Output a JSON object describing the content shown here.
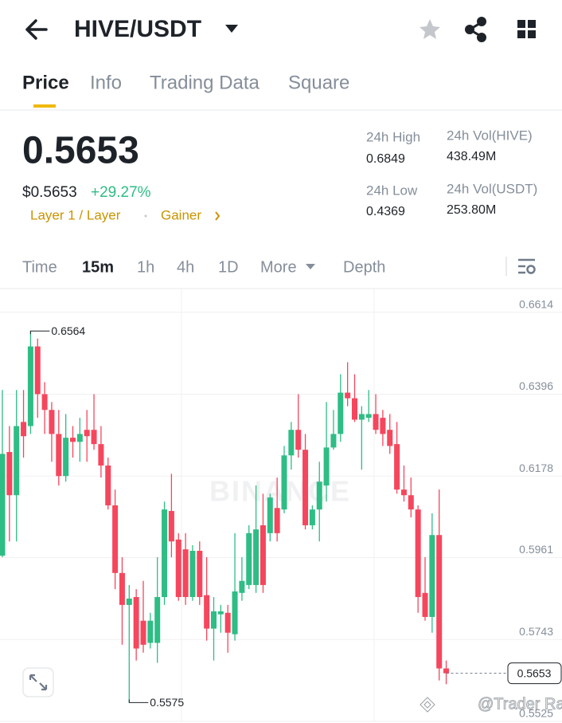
{
  "header": {
    "title": "HIVE/USDT"
  },
  "tabs": [
    "Price",
    "Info",
    "Trading Data",
    "Square"
  ],
  "price": {
    "last": "0.5653",
    "fiat": "$0.5653",
    "change": "+29.27%",
    "tags": [
      "Layer 1 / Layer",
      "Gainer"
    ]
  },
  "stats": [
    {
      "label": "24h High",
      "value": "0.6849"
    },
    {
      "label": "24h Vol(HIVE)",
      "value": "438.49M"
    },
    {
      "label": "24h Low",
      "value": "0.4369"
    },
    {
      "label": "24h Vol(USDT)",
      "value": "253.80M"
    }
  ],
  "intervals": [
    "Time",
    "15m",
    "1h",
    "4h",
    "1D",
    "More",
    "Depth"
  ],
  "chart_data": {
    "type": "candlestick",
    "open": [
      0.5966,
      0.6242,
      0.6127,
      0.6322,
      0.6311,
      0.6523,
      0.6396,
      0.6354,
      0.629,
      0.6178,
      0.628,
      0.6269,
      0.6301,
      0.6301,
      0.6263,
      0.6206,
      0.61,
      0.592,
      0.5835,
      0.5856,
      0.5793,
      0.5734,
      0.5734,
      0.5856,
      0.6085,
      0.6009,
      0.5983,
      0.5856,
      0.5979,
      0.5861,
      0.5772,
      0.581,
      0.5814,
      0.5757,
      0.5867,
      0.5888,
      0.5888,
      0.6047,
      0.6026,
      0.6093,
      0.6089,
      0.6233,
      0.6301,
      0.6248,
      0.6047,
      0.6089,
      0.6153,
      0.6254,
      0.629,
      0.64,
      0.6385,
      0.6328,
      0.6333,
      0.6343,
      0.6333,
      0.6301,
      0.6263,
      0.6142,
      0.6127,
      0.6089,
      0.5867,
      0.5803,
      0.6021,
      0.5666
    ],
    "high": [
      0.6407,
      0.6311,
      0.6407,
      0.6407,
      0.6564,
      0.6544,
      0.6428,
      0.6375,
      0.6354,
      0.6343,
      0.6311,
      0.6333,
      0.6354,
      0.6396,
      0.6311,
      0.6227,
      0.6142,
      0.5962,
      0.5888,
      0.5877,
      0.5899,
      0.5814,
      0.5962,
      0.611,
      0.6184,
      0.6026,
      0.6026,
      0.5994,
      0.6004,
      0.5962,
      0.5856,
      0.5835,
      0.5835,
      0.6026,
      0.5962,
      0.6047,
      0.6153,
      0.6131,
      0.6131,
      0.6174,
      0.6258,
      0.6322,
      0.6396,
      0.629,
      0.61,
      0.6216,
      0.6375,
      0.6354,
      0.6449,
      0.6481,
      0.6449,
      0.6364,
      0.6407,
      0.6396,
      0.6354,
      0.6343,
      0.6322,
      0.6206,
      0.6174,
      0.61,
      0.5962,
      0.6079,
      0.6142,
      0.5687
    ],
    "low": [
      0.5962,
      0.6004,
      0.6004,
      0.6227,
      0.629,
      0.6333,
      0.629,
      0.6216,
      0.6153,
      0.6163,
      0.6227,
      0.6216,
      0.6216,
      0.6248,
      0.6174,
      0.6089,
      0.5877,
      0.5729,
      0.5575,
      0.5687,
      0.5708,
      0.5719,
      0.5681,
      0.5835,
      0.5962,
      0.5846,
      0.5835,
      0.5846,
      0.5835,
      0.574,
      0.5687,
      0.5761,
      0.5708,
      0.574,
      0.5846,
      0.5877,
      0.5867,
      0.5867,
      0.6004,
      0.6004,
      0.6079,
      0.6195,
      0.6227,
      0.6036,
      0.6036,
      0.6004,
      0.611,
      0.6248,
      0.6269,
      0.6364,
      0.6322,
      0.6195,
      0.6322,
      0.629,
      0.6258,
      0.6237,
      0.6131,
      0.611,
      0.6068,
      0.5814,
      0.5793,
      0.5761,
      0.5634,
      0.5624
    ],
    "close": [
      0.6237,
      0.6127,
      0.6311,
      0.6284,
      0.6523,
      0.6396,
      0.6354,
      0.629,
      0.6178,
      0.628,
      0.6269,
      0.629,
      0.6284,
      0.6263,
      0.6206,
      0.61,
      0.592,
      0.5835,
      0.5852,
      0.5719,
      0.5729,
      0.5793,
      0.5856,
      0.6089,
      0.6004,
      0.5856,
      0.5856,
      0.5979,
      0.5856,
      0.5772,
      0.5818,
      0.5818,
      0.5761,
      0.5871,
      0.5899,
      0.6026,
      0.6036,
      0.5888,
      0.6121,
      0.6026,
      0.6233,
      0.6301,
      0.6248,
      0.6047,
      0.6089,
      0.6163,
      0.6254,
      0.629,
      0.64,
      0.6385,
      0.6328,
      0.6343,
      0.6343,
      0.6301,
      0.629,
      0.6258,
      0.6142,
      0.6127,
      0.6089,
      0.5856,
      0.5803,
      0.6021,
      0.5666,
      0.5653
    ],
    "ylim": [
      0.5525,
      0.6677
    ],
    "yticks": [
      0.6614,
      0.6396,
      0.6178,
      0.5961,
      0.5743,
      0.5525
    ],
    "up_color": "#2ebd85",
    "down_color": "#f6465d"
  },
  "logo_watermark": "BINANCE",
  "watermark": "@Trader Rai"
}
